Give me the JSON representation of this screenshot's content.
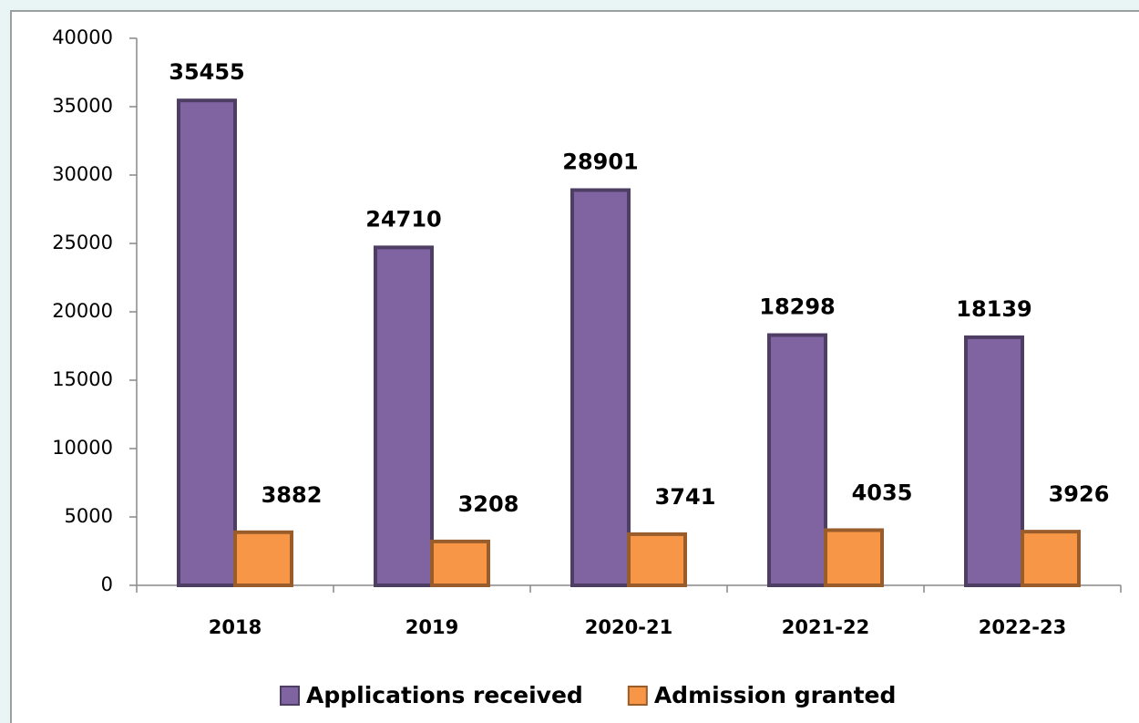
{
  "chart_data": {
    "type": "bar",
    "categories": [
      "2018",
      "2019",
      "2020-21",
      "2021-22",
      "2022-23"
    ],
    "series": [
      {
        "name": "Applications received",
        "color": "#8064a2",
        "values": [
          35455,
          24710,
          28901,
          18298,
          18139
        ]
      },
      {
        "name": "Admission granted",
        "color": "#f79646",
        "values": [
          3882,
          3208,
          3741,
          4035,
          3926
        ]
      }
    ],
    "ylim": [
      0,
      40000
    ],
    "yticks": [
      0,
      5000,
      10000,
      15000,
      20000,
      25000,
      30000,
      35000,
      40000
    ],
    "legend": "bottom"
  }
}
